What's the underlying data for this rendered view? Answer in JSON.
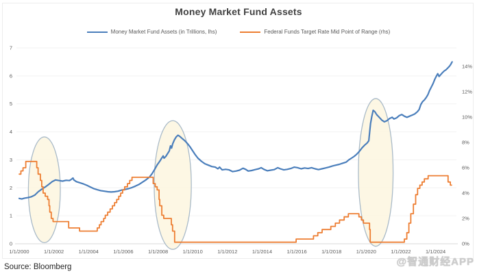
{
  "title": "Money Market Fund Assets",
  "source_note": "Source: Bloomberg",
  "watermark": "@智通财经APP",
  "colors": {
    "mmf_blue": "#4a7ebb",
    "fed_orange": "#ed7d31",
    "gridline": "#f2f2f2",
    "axis_line": "#d9d9d9",
    "tick_text": "#595959",
    "ellipse_fill": "#fcf5dd",
    "ellipse_stroke": "#a9bac8"
  },
  "legend": {
    "items": [
      {
        "label": "Money Market Fund Assets (in Trillions, lhs)",
        "color": "#4a7ebb"
      },
      {
        "label": "Federal Funds Target Rate Mid Point of Range (rhs)",
        "color": "#ed7d31"
      }
    ]
  },
  "chart_data": {
    "type": "line",
    "title": "Money Market Fund Assets",
    "grid": "horizontal-only",
    "legend_position": "top",
    "axes": {
      "x": {
        "min_year": 2000,
        "max_year": 2025.2,
        "ticks": [
          {
            "year": 2000,
            "label": "1/1/2000"
          },
          {
            "year": 2002,
            "label": "1/1/2002"
          },
          {
            "year": 2004,
            "label": "1/1/2004"
          },
          {
            "year": 2006,
            "label": "1/1/2006"
          },
          {
            "year": 2008,
            "label": "1/1/2008"
          },
          {
            "year": 2010,
            "label": "1/1/2010"
          },
          {
            "year": 2012,
            "label": "1/1/2012"
          },
          {
            "year": 2014,
            "label": "1/1/2014"
          },
          {
            "year": 2016,
            "label": "1/1/2016"
          },
          {
            "year": 2018,
            "label": "1/1/2018"
          },
          {
            "year": 2020,
            "label": "1/1/2020"
          },
          {
            "year": 2022,
            "label": "1/1/2022"
          },
          {
            "year": 2024,
            "label": "1/1/2024"
          }
        ]
      },
      "left": {
        "min": 0,
        "max": 7,
        "ticks": [
          "0",
          "1",
          "2",
          "3",
          "4",
          "5",
          "6",
          "7"
        ],
        "units": "trillions USD"
      },
      "right": {
        "min": 0,
        "max": 14,
        "ticks": [
          "0%",
          "2%",
          "4%",
          "6%",
          "8%",
          "10%",
          "12%",
          "14%"
        ],
        "units": "percent"
      }
    },
    "series": [
      {
        "name": "Money Market Fund Assets (in Trillions, lhs)",
        "axis": "left",
        "style": "linear",
        "color": "#4a7ebb",
        "width": 2.2,
        "points": [
          [
            2000.0,
            1.62
          ],
          [
            2000.15,
            1.6
          ],
          [
            2000.3,
            1.63
          ],
          [
            2000.5,
            1.65
          ],
          [
            2000.7,
            1.68
          ],
          [
            2000.9,
            1.74
          ],
          [
            2001.1,
            1.86
          ],
          [
            2001.3,
            1.95
          ],
          [
            2001.5,
            2.03
          ],
          [
            2001.7,
            2.12
          ],
          [
            2001.9,
            2.22
          ],
          [
            2002.1,
            2.28
          ],
          [
            2002.3,
            2.26
          ],
          [
            2002.5,
            2.24
          ],
          [
            2002.7,
            2.27
          ],
          [
            2002.9,
            2.26
          ],
          [
            2003.0,
            2.3
          ],
          [
            2003.1,
            2.35
          ],
          [
            2003.15,
            2.28
          ],
          [
            2003.3,
            2.22
          ],
          [
            2003.5,
            2.18
          ],
          [
            2003.7,
            2.14
          ],
          [
            2003.9,
            2.09
          ],
          [
            2004.1,
            2.03
          ],
          [
            2004.3,
            1.97
          ],
          [
            2004.5,
            1.93
          ],
          [
            2004.7,
            1.9
          ],
          [
            2004.9,
            1.88
          ],
          [
            2005.1,
            1.86
          ],
          [
            2005.3,
            1.85
          ],
          [
            2005.5,
            1.86
          ],
          [
            2005.7,
            1.88
          ],
          [
            2005.9,
            1.92
          ],
          [
            2006.1,
            1.94
          ],
          [
            2006.3,
            1.97
          ],
          [
            2006.5,
            2.01
          ],
          [
            2006.7,
            2.06
          ],
          [
            2006.9,
            2.12
          ],
          [
            2007.1,
            2.2
          ],
          [
            2007.3,
            2.28
          ],
          [
            2007.5,
            2.38
          ],
          [
            2007.65,
            2.5
          ],
          [
            2007.8,
            2.65
          ],
          [
            2007.95,
            2.82
          ],
          [
            2008.1,
            2.95
          ],
          [
            2008.2,
            3.05
          ],
          [
            2008.3,
            3.14
          ],
          [
            2008.35,
            3.06
          ],
          [
            2008.45,
            3.12
          ],
          [
            2008.55,
            3.22
          ],
          [
            2008.65,
            3.32
          ],
          [
            2008.72,
            3.5
          ],
          [
            2008.78,
            3.42
          ],
          [
            2008.85,
            3.58
          ],
          [
            2008.95,
            3.72
          ],
          [
            2009.05,
            3.82
          ],
          [
            2009.15,
            3.88
          ],
          [
            2009.25,
            3.84
          ],
          [
            2009.4,
            3.76
          ],
          [
            2009.55,
            3.68
          ],
          [
            2009.7,
            3.58
          ],
          [
            2009.85,
            3.46
          ],
          [
            2010.0,
            3.32
          ],
          [
            2010.15,
            3.18
          ],
          [
            2010.3,
            3.06
          ],
          [
            2010.5,
            2.95
          ],
          [
            2010.7,
            2.86
          ],
          [
            2010.9,
            2.81
          ],
          [
            2011.1,
            2.76
          ],
          [
            2011.3,
            2.74
          ],
          [
            2011.45,
            2.68
          ],
          [
            2011.55,
            2.74
          ],
          [
            2011.7,
            2.64
          ],
          [
            2011.9,
            2.66
          ],
          [
            2012.1,
            2.64
          ],
          [
            2012.3,
            2.58
          ],
          [
            2012.5,
            2.6
          ],
          [
            2012.7,
            2.63
          ],
          [
            2012.9,
            2.7
          ],
          [
            2013.05,
            2.66
          ],
          [
            2013.2,
            2.6
          ],
          [
            2013.4,
            2.62
          ],
          [
            2013.6,
            2.65
          ],
          [
            2013.8,
            2.68
          ],
          [
            2013.95,
            2.72
          ],
          [
            2014.1,
            2.66
          ],
          [
            2014.3,
            2.61
          ],
          [
            2014.5,
            2.63
          ],
          [
            2014.7,
            2.65
          ],
          [
            2014.9,
            2.72
          ],
          [
            2015.05,
            2.68
          ],
          [
            2015.25,
            2.64
          ],
          [
            2015.45,
            2.66
          ],
          [
            2015.65,
            2.69
          ],
          [
            2015.85,
            2.74
          ],
          [
            2016.05,
            2.72
          ],
          [
            2016.25,
            2.68
          ],
          [
            2016.45,
            2.71
          ],
          [
            2016.65,
            2.69
          ],
          [
            2016.85,
            2.72
          ],
          [
            2017.05,
            2.68
          ],
          [
            2017.25,
            2.65
          ],
          [
            2017.45,
            2.68
          ],
          [
            2017.65,
            2.71
          ],
          [
            2017.85,
            2.74
          ],
          [
            2018.05,
            2.78
          ],
          [
            2018.25,
            2.81
          ],
          [
            2018.45,
            2.84
          ],
          [
            2018.65,
            2.88
          ],
          [
            2018.85,
            2.92
          ],
          [
            2019.0,
            3.0
          ],
          [
            2019.15,
            3.06
          ],
          [
            2019.3,
            3.12
          ],
          [
            2019.45,
            3.2
          ],
          [
            2019.6,
            3.3
          ],
          [
            2019.75,
            3.42
          ],
          [
            2019.9,
            3.52
          ],
          [
            2020.05,
            3.6
          ],
          [
            2020.15,
            3.68
          ],
          [
            2020.2,
            4.0
          ],
          [
            2020.25,
            4.3
          ],
          [
            2020.32,
            4.55
          ],
          [
            2020.4,
            4.77
          ],
          [
            2020.5,
            4.72
          ],
          [
            2020.6,
            4.62
          ],
          [
            2020.75,
            4.52
          ],
          [
            2020.9,
            4.42
          ],
          [
            2021.05,
            4.36
          ],
          [
            2021.2,
            4.4
          ],
          [
            2021.35,
            4.48
          ],
          [
            2021.5,
            4.52
          ],
          [
            2021.6,
            4.46
          ],
          [
            2021.75,
            4.5
          ],
          [
            2021.9,
            4.58
          ],
          [
            2022.05,
            4.62
          ],
          [
            2022.2,
            4.56
          ],
          [
            2022.35,
            4.52
          ],
          [
            2022.5,
            4.56
          ],
          [
            2022.65,
            4.6
          ],
          [
            2022.8,
            4.64
          ],
          [
            2022.95,
            4.72
          ],
          [
            2023.05,
            4.8
          ],
          [
            2023.15,
            4.98
          ],
          [
            2023.25,
            5.08
          ],
          [
            2023.35,
            5.14
          ],
          [
            2023.45,
            5.22
          ],
          [
            2023.55,
            5.32
          ],
          [
            2023.65,
            5.48
          ],
          [
            2023.75,
            5.6
          ],
          [
            2023.85,
            5.72
          ],
          [
            2023.95,
            5.88
          ],
          [
            2024.05,
            6.0
          ],
          [
            2024.12,
            6.08
          ],
          [
            2024.2,
            5.98
          ],
          [
            2024.3,
            6.05
          ],
          [
            2024.4,
            6.12
          ],
          [
            2024.5,
            6.18
          ],
          [
            2024.6,
            6.22
          ],
          [
            2024.7,
            6.28
          ],
          [
            2024.8,
            6.35
          ],
          [
            2024.88,
            6.42
          ],
          [
            2024.95,
            6.5
          ]
        ]
      },
      {
        "name": "Federal Funds Target Rate Mid Point of Range (rhs)",
        "axis": "right",
        "style": "step",
        "color": "#ed7d31",
        "width": 1.8,
        "end_year": 2024.92,
        "points": [
          [
            2000.0,
            5.5
          ],
          [
            2000.1,
            5.75
          ],
          [
            2000.22,
            6.0
          ],
          [
            2000.38,
            6.5
          ],
          [
            2001.01,
            6.0
          ],
          [
            2001.09,
            5.5
          ],
          [
            2001.22,
            5.0
          ],
          [
            2001.3,
            4.5
          ],
          [
            2001.38,
            4.0
          ],
          [
            2001.5,
            3.75
          ],
          [
            2001.64,
            3.5
          ],
          [
            2001.72,
            3.0
          ],
          [
            2001.76,
            2.5
          ],
          [
            2001.85,
            2.0
          ],
          [
            2001.95,
            1.75
          ],
          [
            2002.85,
            1.25
          ],
          [
            2003.48,
            1.0
          ],
          [
            2004.5,
            1.25
          ],
          [
            2004.62,
            1.5
          ],
          [
            2004.72,
            1.75
          ],
          [
            2004.87,
            2.0
          ],
          [
            2004.96,
            2.25
          ],
          [
            2005.1,
            2.5
          ],
          [
            2005.24,
            2.75
          ],
          [
            2005.37,
            3.0
          ],
          [
            2005.5,
            3.25
          ],
          [
            2005.62,
            3.5
          ],
          [
            2005.74,
            3.75
          ],
          [
            2005.85,
            4.0
          ],
          [
            2005.96,
            4.25
          ],
          [
            2006.08,
            4.5
          ],
          [
            2006.24,
            4.75
          ],
          [
            2006.37,
            5.0
          ],
          [
            2006.5,
            5.25
          ],
          [
            2007.72,
            4.75
          ],
          [
            2007.84,
            4.5
          ],
          [
            2007.95,
            4.25
          ],
          [
            2008.06,
            3.5
          ],
          [
            2008.1,
            3.0
          ],
          [
            2008.22,
            2.25
          ],
          [
            2008.33,
            2.0
          ],
          [
            2008.77,
            1.5
          ],
          [
            2008.84,
            1.0
          ],
          [
            2008.96,
            0.125
          ],
          [
            2015.96,
            0.375
          ],
          [
            2016.96,
            0.625
          ],
          [
            2017.21,
            0.875
          ],
          [
            2017.46,
            1.125
          ],
          [
            2017.96,
            1.375
          ],
          [
            2018.22,
            1.625
          ],
          [
            2018.46,
            1.875
          ],
          [
            2018.73,
            2.125
          ],
          [
            2018.97,
            2.375
          ],
          [
            2019.58,
            2.125
          ],
          [
            2019.72,
            1.875
          ],
          [
            2019.84,
            1.625
          ],
          [
            2020.19,
            1.125
          ],
          [
            2020.23,
            0.125
          ],
          [
            2022.2,
            0.375
          ],
          [
            2022.34,
            0.875
          ],
          [
            2022.46,
            1.625
          ],
          [
            2022.57,
            2.375
          ],
          [
            2022.72,
            3.125
          ],
          [
            2022.85,
            3.875
          ],
          [
            2022.96,
            4.375
          ],
          [
            2023.09,
            4.625
          ],
          [
            2023.22,
            4.875
          ],
          [
            2023.35,
            5.125
          ],
          [
            2023.57,
            5.375
          ],
          [
            2024.72,
            4.875
          ],
          [
            2024.85,
            4.625
          ]
        ]
      }
    ],
    "annotations": {
      "ellipses": [
        {
          "center_year": 2001.45,
          "center_left_value": 1.93,
          "radius_years": 0.92,
          "radius_left_value": 1.89
        },
        {
          "center_year": 2008.85,
          "center_left_value": 2.1,
          "radius_years": 1.07,
          "radius_left_value": 2.3
        },
        {
          "center_year": 2020.55,
          "center_left_value": 2.55,
          "radius_years": 1.0,
          "radius_left_value": 2.64
        }
      ]
    }
  }
}
